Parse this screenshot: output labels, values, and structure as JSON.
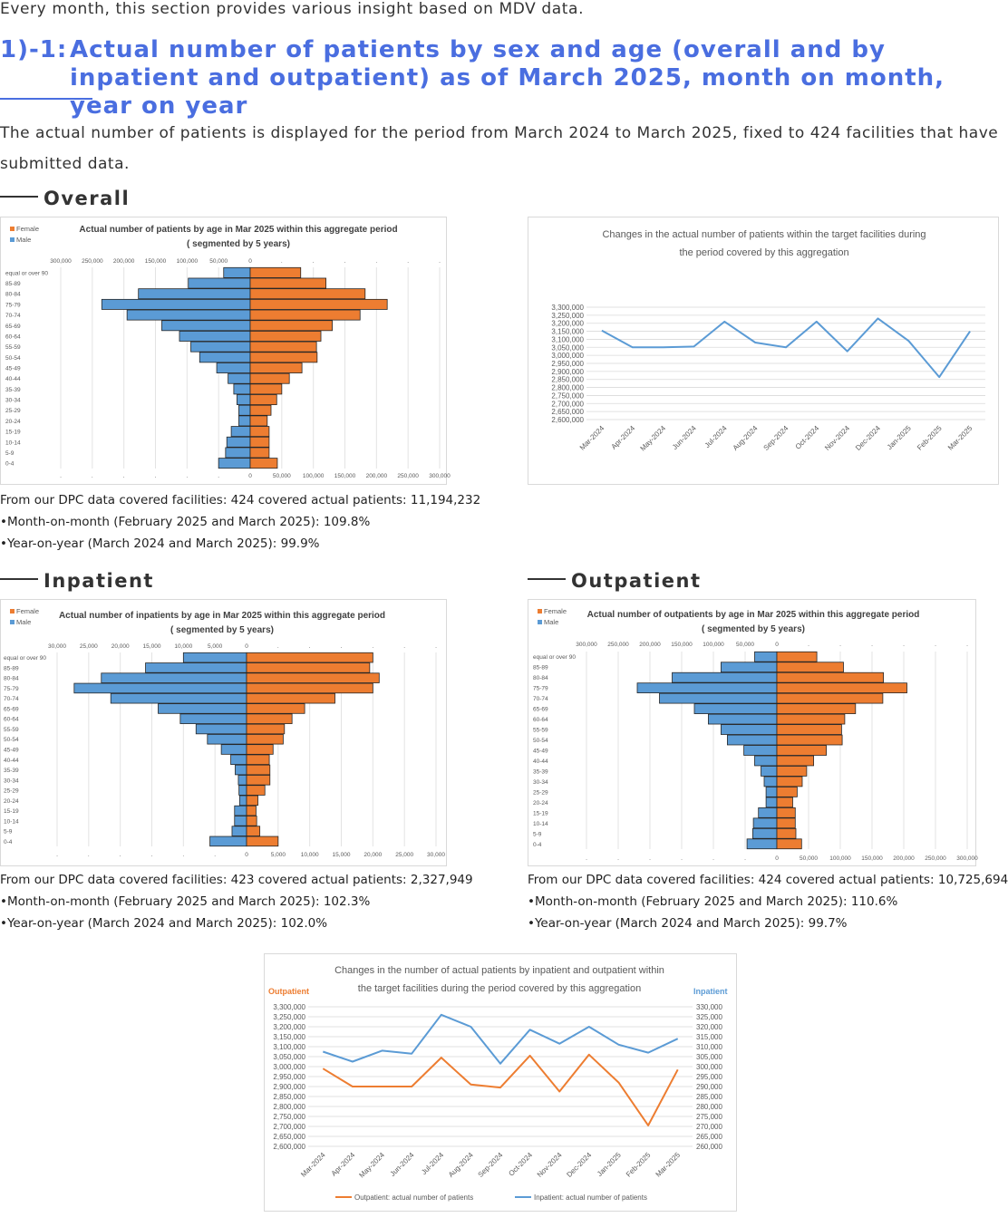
{
  "intro": "Every month, this section provides various insight based on MDV data.",
  "heading": {
    "num": "1)-1:",
    "text": "Actual number of patients by sex and age (overall and by inpatient and outpatient) as of March 2025, month on month, year on year"
  },
  "description": "The actual number of patients is displayed for the period from March 2024 to March 2025, fixed to 424  facilities that have submitted data.",
  "sections": {
    "overall": "Overall",
    "inpatient": "Inpatient",
    "outpatient": "Outpatient"
  },
  "stats": {
    "overall": {
      "line1": "From our DPC data covered facilities: 424 covered actual patients: 11,194,232",
      "line2": "•Month-on-month (February 2025 and March 2025): 109.8%",
      "line3": "•Year-on-year (March 2024 and March 2025): 99.9%"
    },
    "inpatient": {
      "line1": "From our DPC data covered facilities: 423 covered actual patients: 2,327,949",
      "line2": "•Month-on-month (February 2025 and March 2025): 102.3%",
      "line3": "•Year-on-year (March 2024 and March 2025): 102.0%"
    },
    "outpatient": {
      "line1": "From our DPC data covered facilities: 424 covered actual patients: 10,725,694",
      "line2": "•Month-on-month (February 2025 and March 2025): 110.6%",
      "line3": "•Year-on-year (March 2024 and March 2025): 99.7%"
    }
  },
  "colors": {
    "female": "#ED7D31",
    "male": "#5B9BD5",
    "heading": "#4a6ee0",
    "inpatient": "#5B9BD5",
    "outpatient": "#ED7D31"
  },
  "chart_data": [
    {
      "id": "overall-pyramid",
      "type": "bar",
      "orientation": "horizontal-pyramid",
      "title_lines": [
        "Actual number of patients by age in Mar 2025 within this aggregate period",
        "( segmented by 5 years)"
      ],
      "legend": [
        "Female",
        "Male"
      ],
      "categories": [
        "equal or over 90",
        "85-89",
        "80-84",
        "75-79",
        "70-74",
        "65-69",
        "60-64",
        "55-59",
        "50-54",
        "45-49",
        "40-44",
        "35-39",
        "30-34",
        "25-29",
        "20-24",
        "15-19",
        "10-14",
        "5-9",
        "0-4"
      ],
      "series": [
        {
          "name": "Male",
          "values": [
            42000,
            98000,
            177000,
            235000,
            195000,
            140000,
            112000,
            94000,
            80000,
            53000,
            35000,
            26000,
            21000,
            18000,
            18000,
            30000,
            37000,
            39000,
            50000
          ]
        },
        {
          "name": "Female",
          "values": [
            80000,
            120000,
            182000,
            217000,
            174000,
            130000,
            112000,
            105000,
            106000,
            82000,
            62000,
            50000,
            42000,
            33000,
            27000,
            30000,
            30000,
            30000,
            43000
          ]
        }
      ],
      "xlim": [
        -300000,
        300000
      ],
      "top_ticks": [
        "300,000",
        "250,000",
        "200,000",
        "150,000",
        "100,000",
        "50,000",
        "0",
        ".",
        ".",
        ".",
        ".",
        ".",
        "."
      ],
      "bottom_ticks": [
        ".",
        ".",
        ".",
        ".",
        ".",
        ".",
        "0",
        "50,000",
        "100,000",
        "150,000",
        "200,000",
        "250,000",
        "300,000"
      ]
    },
    {
      "id": "overall-line",
      "type": "line",
      "title_lines": [
        "Changes in the actual number of patients within the target facilities during",
        "the period covered by this aggregation"
      ],
      "x": [
        "Mar-2024",
        "Apr-2024",
        "May-2024",
        "Jun-2024",
        "Jul-2024",
        "Aug-2024",
        "Sep-2024",
        "Oct-2024",
        "Nov-2024",
        "Dec-2024",
        "Jan-2025",
        "Feb-2025",
        "Mar-2025"
      ],
      "series": [
        {
          "values": [
            3155000,
            3050000,
            3050000,
            3055000,
            3210000,
            3080000,
            3050000,
            3210000,
            3025000,
            3230000,
            3090000,
            2865000,
            3150000
          ]
        }
      ],
      "ylim": [
        2600000,
        3300000
      ],
      "yticks": [
        "3,300,000",
        "3,250,000",
        "3,200,000",
        "3,150,000",
        "3,100,000",
        "3,050,000",
        "3,000,000",
        "2,950,000",
        "2,900,000",
        "2,850,000",
        "2,800,000",
        "2,750,000",
        "2,700,000",
        "2,650,000",
        "2,600,000"
      ]
    },
    {
      "id": "inpatient-pyramid",
      "type": "bar",
      "orientation": "horizontal-pyramid",
      "title_lines": [
        "Actual number of inpatients by age in Mar 2025 within this aggregate period",
        "( segmented by 5 years)"
      ],
      "legend": [
        "Female",
        "Male"
      ],
      "categories": [
        "equal or over 90",
        "85-89",
        "80-84",
        "75-79",
        "70-74",
        "65-69",
        "60-64",
        "55-59",
        "50-54",
        "45-49",
        "40-44",
        "35-39",
        "30-34",
        "25-29",
        "20-24",
        "15-19",
        "10-14",
        "5-9",
        "0-4"
      ],
      "series": [
        {
          "name": "Male",
          "values": [
            10000,
            16000,
            23000,
            27300,
            21500,
            14000,
            10500,
            8000,
            6200,
            4000,
            2500,
            1800,
            1300,
            1200,
            1100,
            1900,
            1900,
            2300,
            5800
          ]
        },
        {
          "name": "Female",
          "values": [
            20000,
            19500,
            21000,
            20000,
            14000,
            9200,
            7200,
            6000,
            5800,
            4200,
            3600,
            3700,
            3700,
            2900,
            1800,
            1500,
            1600,
            2100,
            5000
          ]
        }
      ],
      "xlim": [
        -30000,
        30000
      ],
      "top_ticks": [
        "30,000",
        "25,000",
        "20,000",
        "15,000",
        "10,000",
        "5,000",
        "0",
        ".",
        ".",
        ".",
        ".",
        ".",
        "."
      ],
      "bottom_ticks": [
        ".",
        ".",
        ".",
        ".",
        ".",
        ".",
        "0",
        "5,000",
        "10,000",
        "15,000",
        "20,000",
        "25,000",
        "30,000"
      ]
    },
    {
      "id": "outpatient-pyramid",
      "type": "bar",
      "orientation": "horizontal-pyramid",
      "title_lines": [
        "Actual number of outpatients by age in Mar 2025 within this aggregate period",
        "( segmented by 5 years)"
      ],
      "legend": [
        "Female",
        "Male"
      ],
      "categories": [
        "equal or over 90",
        "85-89",
        "80-84",
        "75-79",
        "70-74",
        "65-69",
        "60-64",
        "55-59",
        "50-54",
        "45-49",
        "40-44",
        "35-39",
        "30-34",
        "25-29",
        "20-24",
        "15-19",
        "10-14",
        "5-9",
        "0-4"
      ],
      "series": [
        {
          "name": "Male",
          "values": [
            35000,
            88000,
            165000,
            220000,
            185000,
            130000,
            108000,
            88000,
            78000,
            52000,
            35000,
            25000,
            20000,
            17000,
            17000,
            29000,
            37000,
            38000,
            47000
          ]
        },
        {
          "name": "Female",
          "values": [
            63000,
            105000,
            168000,
            205000,
            167000,
            124000,
            107000,
            102000,
            103000,
            78000,
            58000,
            47000,
            40000,
            32000,
            25000,
            29000,
            29000,
            30000,
            39000
          ]
        }
      ],
      "xlim": [
        -300000,
        300000
      ],
      "top_ticks": [
        "300,000",
        "250,000",
        "200,000",
        "150,000",
        "100,000",
        "50,000",
        "0",
        ".",
        ".",
        ".",
        ".",
        ".",
        "."
      ],
      "bottom_ticks": [
        ".",
        ".",
        ".",
        ".",
        ".",
        ".",
        "0",
        "50,000",
        "100,000",
        "150,000",
        "200,000",
        "250,000",
        "300,000"
      ]
    },
    {
      "id": "combined-line",
      "type": "line",
      "title_lines": [
        "Changes in the number of actual patients by inpatient and outpatient within",
        "the target facilities during the period covered by this aggregation"
      ],
      "left_axis_label": "Outpatient",
      "right_axis_label": "Inpatient",
      "x": [
        "Mar-2024",
        "Apr-2024",
        "May-2024",
        "Jun-2024",
        "Jul-2024",
        "Aug-2024",
        "Sep-2024",
        "Oct-2024",
        "Nov-2024",
        "Dec-2024",
        "Jan-2025",
        "Feb-2025",
        "Mar-2025"
      ],
      "series": [
        {
          "name": "Outpatient: actual number of patients",
          "axis": "left",
          "values": [
            2990000,
            2900000,
            2900000,
            2900000,
            3045000,
            2910000,
            2895000,
            3055000,
            2875000,
            3060000,
            2920000,
            2705000,
            2985000
          ]
        },
        {
          "name": "Inpatient: actual number of patients",
          "axis": "right",
          "values": [
            307500,
            302500,
            308000,
            306500,
            326000,
            320000,
            301500,
            318500,
            311500,
            320000,
            311000,
            307000,
            314000
          ]
        }
      ],
      "ylim_left": [
        2600000,
        3300000
      ],
      "ylim_right": [
        260000,
        330000
      ],
      "yticks_left": [
        "3,300,000",
        "3,250,000",
        "3,200,000",
        "3,150,000",
        "3,100,000",
        "3,050,000",
        "3,000,000",
        "2,950,000",
        "2,900,000",
        "2,850,000",
        "2,800,000",
        "2,750,000",
        "2,700,000",
        "2,650,000",
        "2,600,000"
      ],
      "yticks_right": [
        "330,000",
        "325,000",
        "320,000",
        "315,000",
        "310,000",
        "305,000",
        "300,000",
        "295,000",
        "290,000",
        "285,000",
        "280,000",
        "275,000",
        "270,000",
        "265,000",
        "260,000"
      ]
    }
  ]
}
